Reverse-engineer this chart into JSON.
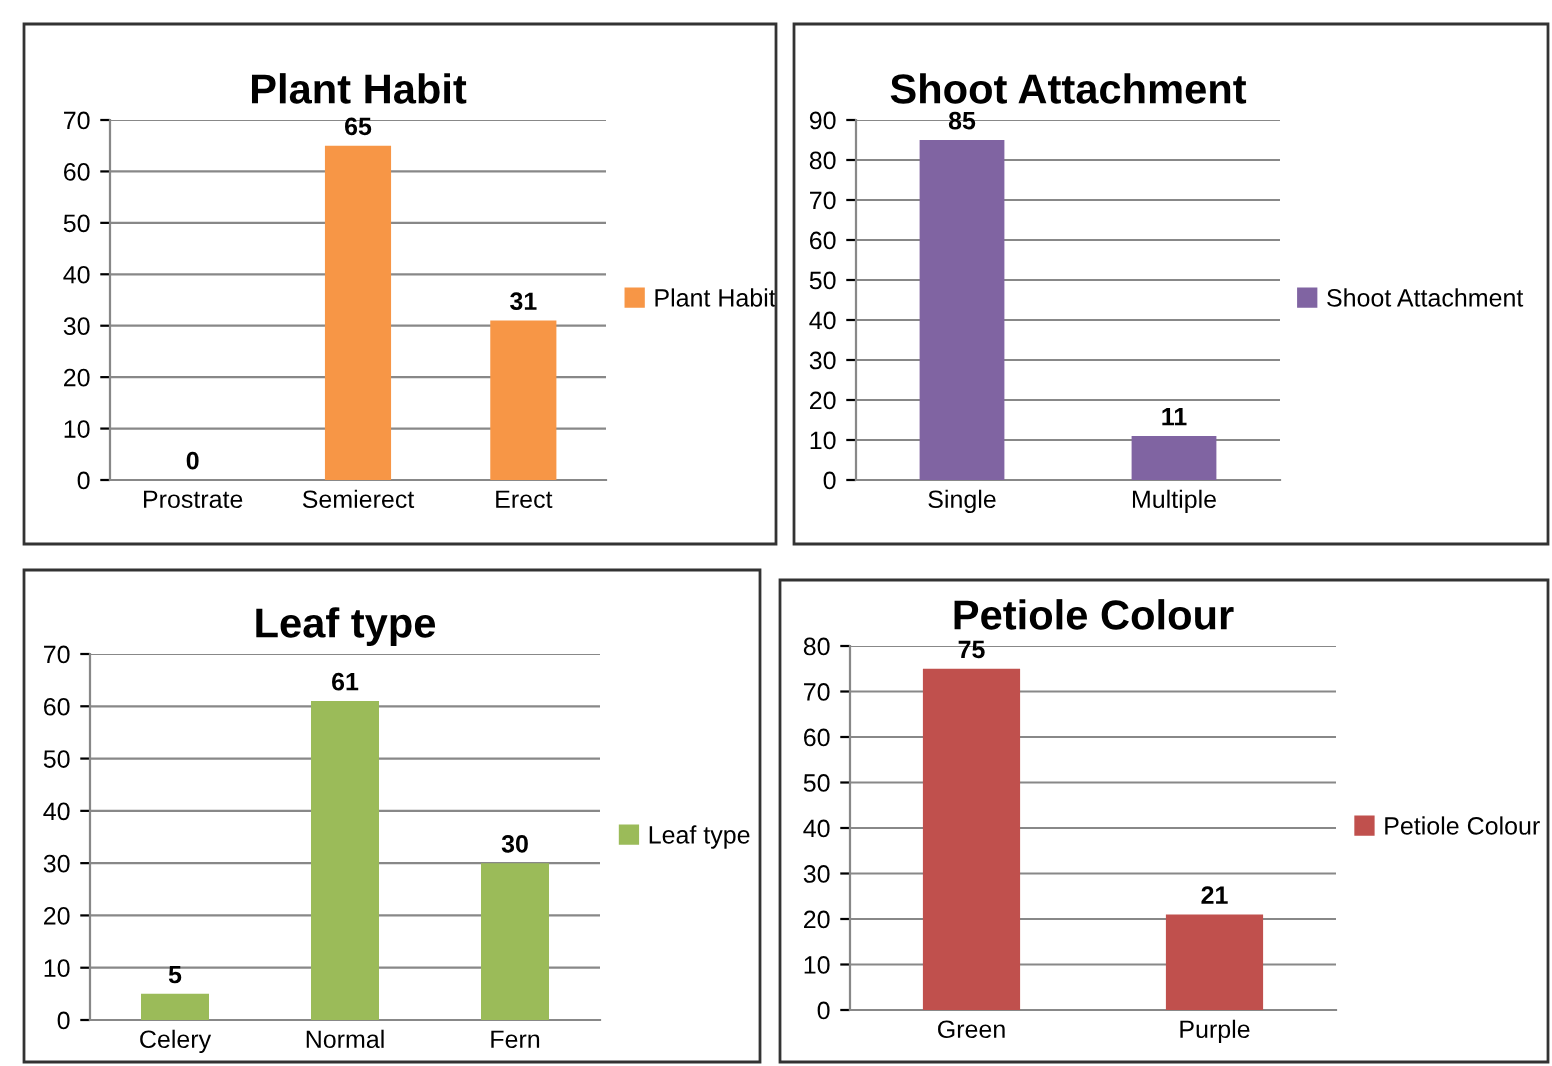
{
  "chart_data": [
    {
      "type": "bar",
      "title": "Plant Habit",
      "categories": [
        "Prostrate",
        "Semierect",
        "Erect"
      ],
      "series": [
        {
          "name": "Plant Habit",
          "color": "#f79646",
          "values": [
            0,
            65,
            31
          ]
        }
      ],
      "ylim": [
        0,
        70
      ],
      "yticks": [
        0,
        10,
        20,
        30,
        40,
        50,
        60,
        70
      ],
      "grid": "y",
      "legend": "right",
      "data_labels": true
    },
    {
      "type": "bar",
      "title": "Shoot Attachment",
      "categories": [
        "Single",
        "Multiple"
      ],
      "series": [
        {
          "name": "Shoot Attachment",
          "color": "#8064a2",
          "values": [
            85,
            11
          ]
        }
      ],
      "ylim": [
        0,
        90
      ],
      "yticks": [
        0,
        10,
        20,
        30,
        40,
        50,
        60,
        70,
        80,
        90
      ],
      "grid": "y",
      "legend": "right",
      "data_labels": true
    },
    {
      "type": "bar",
      "title": "Leaf type",
      "categories": [
        "Celery",
        "Normal",
        "Fern"
      ],
      "series": [
        {
          "name": "Leaf type",
          "color": "#9bbb59",
          "values": [
            5,
            61,
            30
          ]
        }
      ],
      "ylim": [
        0,
        70
      ],
      "yticks": [
        0,
        10,
        20,
        30,
        40,
        50,
        60,
        70
      ],
      "grid": "y",
      "legend": "right",
      "data_labels": true
    },
    {
      "type": "bar",
      "title": "Petiole Colour",
      "categories": [
        "Green",
        "Purple"
      ],
      "series": [
        {
          "name": "Petiole Colour",
          "color": "#c0504d",
          "values": [
            75,
            21
          ]
        }
      ],
      "ylim": [
        0,
        80
      ],
      "yticks": [
        0,
        10,
        20,
        30,
        40,
        50,
        60,
        70,
        80
      ],
      "grid": "y",
      "legend": "right",
      "data_labels": true
    }
  ]
}
